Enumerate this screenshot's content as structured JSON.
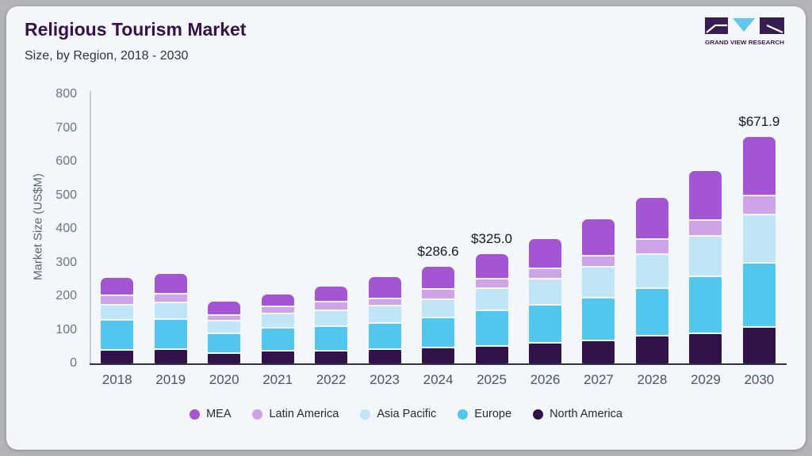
{
  "header": {
    "title": "Religious Tourism Market",
    "subtitle": "Size, by Region, 2018 - 2030"
  },
  "logo": {
    "text": "GRAND VIEW RESEARCH",
    "purple": "#3a1c54",
    "blue": "#62c7ee"
  },
  "chart_data": {
    "type": "bar",
    "stacked": true,
    "title": "Religious Tourism Market Size, by Region, 2018 - 2030",
    "xlabel": "",
    "ylabel": "Market Size (US$M)",
    "ylim": [
      0,
      800
    ],
    "yticks": [
      0,
      100,
      200,
      300,
      400,
      500,
      600,
      700,
      800
    ],
    "grid": false,
    "legend_position": "bottom",
    "categories": [
      "2018",
      "2019",
      "2020",
      "2021",
      "2022",
      "2023",
      "2024",
      "2025",
      "2026",
      "2027",
      "2028",
      "2029",
      "2030"
    ],
    "series": [
      {
        "name": "North America",
        "color": "#321349",
        "values": [
          38,
          41,
          28,
          35,
          36,
          41,
          45.3,
          49.3,
          58.7,
          66,
          80,
          87.5,
          105.6
        ]
      },
      {
        "name": "Europe",
        "color": "#53c6f0",
        "values": [
          89,
          88,
          58,
          68,
          72,
          76,
          89.2,
          105.5,
          113.8,
          127,
          141,
          169,
          190
        ]
      },
      {
        "name": "Asia Pacific",
        "color": "#bfe5f7",
        "values": [
          45,
          51,
          38,
          42,
          48,
          53,
          54.8,
          65.7,
          76.9,
          91,
          101.6,
          120.6,
          143.8
        ]
      },
      {
        "name": "Latin America",
        "color": "#cfa3e8",
        "values": [
          27,
          25,
          17,
          21,
          25,
          21.5,
          29.7,
          28.2,
          31.3,
          34.5,
          45.5,
          47.6,
          57.2
        ]
      },
      {
        "name": "MEA",
        "color": "#a455d4",
        "values": [
          55,
          61,
          43,
          38,
          47,
          64.9,
          67.6,
          76.3,
          89.8,
          109.5,
          124.9,
          148.3,
          175.3
        ]
      }
    ],
    "totals": [
      254,
      266,
      184,
      204,
      228,
      256.4,
      286.6,
      325.0,
      370.5,
      428,
      493,
      573,
      671.9
    ],
    "annotations": [
      {
        "category": "2024",
        "label": "$286.6"
      },
      {
        "category": "2025",
        "label": "$325.0"
      },
      {
        "category": "2030",
        "label": "$671.9"
      }
    ]
  },
  "colors": {
    "card_bg": "#f3f6fa",
    "outer_bg": "#b2b4b8",
    "title": "#36114e",
    "x_axis_line": "#2b3542",
    "y_axis_line": "#c8ccd4"
  }
}
